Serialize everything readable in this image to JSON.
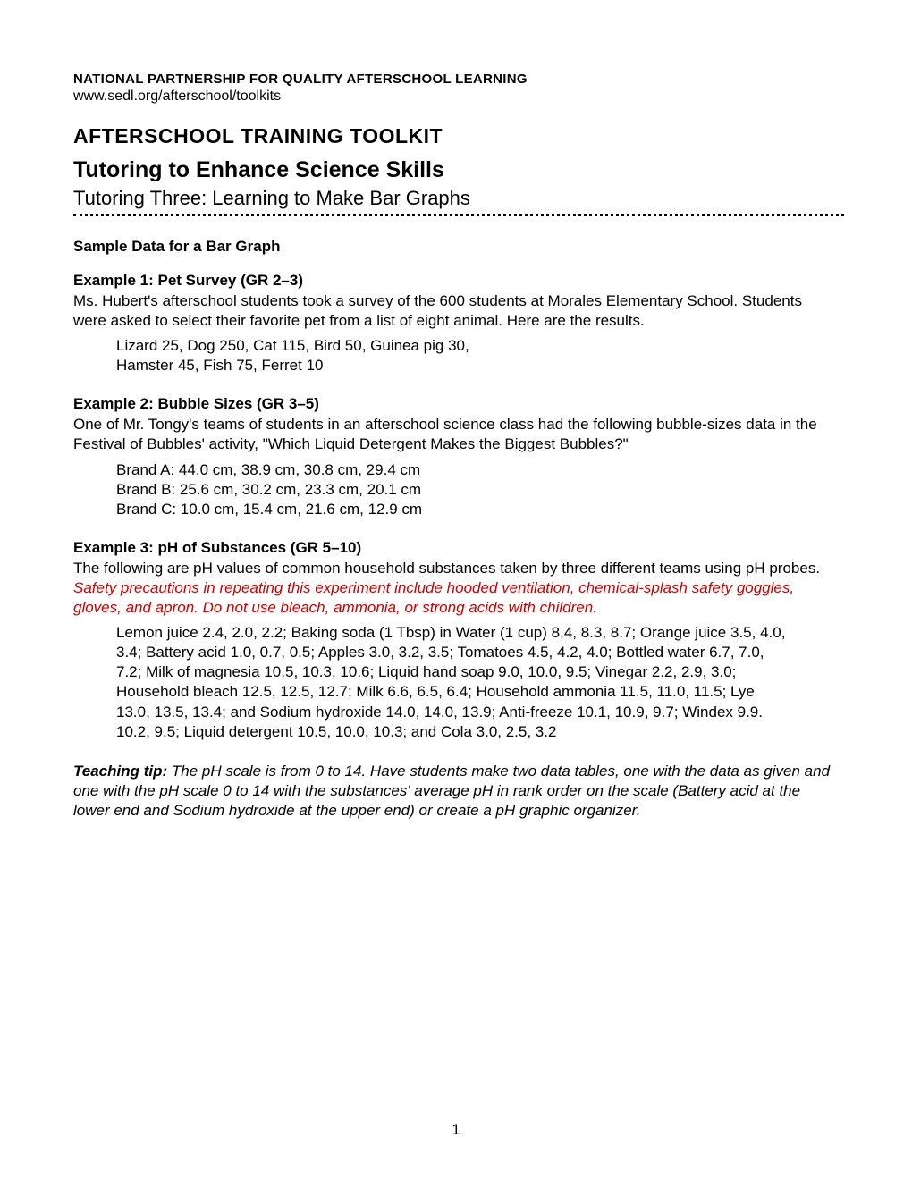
{
  "header": {
    "organization": "NATIONAL PARTNERSHIP FOR QUALITY AFTERSCHOOL LEARNING",
    "url": "www.sedl.org/afterschool/toolkits",
    "toolkit_title": "AFTERSCHOOL TRAINING TOOLKIT",
    "main_title": "Tutoring to Enhance Science Skills",
    "subtitle": "Tutoring Three: Learning to Make Bar Graphs"
  },
  "section_heading": "Sample Data for a Bar Graph",
  "example1": {
    "heading": "Example 1: Pet Survey (GR 2–3)",
    "body": "Ms. Hubert's afterschool students took a survey of the 600 students at Morales Elementary School. Students were asked to select their favorite pet from a list of eight animal. Here are the results.",
    "data": "Lizard 25, Dog 250, Cat 115, Bird 50, Guinea pig 30,\nHamster 45, Fish 75, Ferret 10"
  },
  "example2": {
    "heading": "Example 2: Bubble Sizes (GR 3–5)",
    "body": "One of Mr. Tongy's teams of students in an afterschool science class had the following bubble-sizes data in the Festival of Bubbles' activity, \"Which Liquid Detergent Makes the Biggest Bubbles?\"",
    "data": "Brand A: 44.0 cm, 38.9 cm, 30.8 cm, 29.4 cm\nBrand B: 25.6 cm, 30.2 cm, 23.3 cm, 20.1 cm\nBrand C: 10.0 cm, 15.4 cm, 21.6 cm, 12.9 cm"
  },
  "example3": {
    "heading": "Example 3: pH of Substances (GR 5–10)",
    "body_prefix": "The following are pH values of common household substances taken by three different teams using pH probes. ",
    "safety": "Safety precautions in repeating this experiment include hooded ventilation, chemical-splash safety goggles, gloves, and apron. Do not use bleach, ammonia, or strong acids with children.",
    "data": "Lemon juice 2.4, 2.0, 2.2; Baking soda (1 Tbsp) in Water (1 cup) 8.4, 8.3, 8.7; Orange juice 3.5, 4.0, 3.4; Battery acid 1.0, 0.7, 0.5; Apples 3.0, 3.2, 3.5; Tomatoes 4.5, 4.2, 4.0; Bottled water 6.7, 7.0, 7.2; Milk of magnesia 10.5, 10.3, 10.6; Liquid hand soap 9.0, 10.0, 9.5; Vinegar 2.2, 2.9, 3.0; Household bleach 12.5, 12.5, 12.7; Milk 6.6, 6.5, 6.4; Household ammonia 11.5, 11.0, 11.5; Lye 13.0, 13.5, 13.4; and Sodium hydroxide 14.0, 14.0, 13.9; Anti-freeze 10.1, 10.9, 9.7; Windex 9.9. 10.2, 9.5; Liquid detergent 10.5, 10.0, 10.3; and Cola 3.0, 2.5, 3.2"
  },
  "teaching_tip": {
    "label": "Teaching tip:",
    "text": " The pH scale is from 0 to 14. Have students make two data tables, one with the data as given and one with the pH scale 0 to 14 with the substances' average pH in rank order on the scale (Battery acid at the lower end and Sodium hydroxide at the upper end) or create a pH graphic organizer."
  },
  "page_number": "1",
  "colors": {
    "text": "#000000",
    "safety": "#cc0000",
    "background": "#ffffff"
  }
}
